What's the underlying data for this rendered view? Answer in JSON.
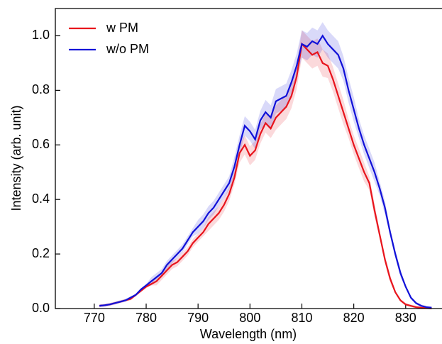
{
  "chart_data": {
    "type": "line",
    "xlabel": "Wavelength (nm)",
    "ylabel": "Intensity (arb. unit)",
    "x": [
      771,
      772,
      773,
      774,
      775,
      776,
      777,
      778,
      779,
      780,
      781,
      782,
      783,
      784,
      785,
      786,
      787,
      788,
      789,
      790,
      791,
      792,
      793,
      794,
      795,
      796,
      797,
      798,
      799,
      800,
      801,
      802,
      803,
      804,
      805,
      806,
      807,
      808,
      809,
      810,
      811,
      812,
      813,
      814,
      815,
      816,
      817,
      818,
      819,
      820,
      821,
      822,
      823,
      824,
      825,
      826,
      827,
      828,
      829,
      830,
      831,
      832,
      833,
      834,
      835
    ],
    "series": [
      {
        "name": "w PM",
        "color": "#e8141c",
        "values": [
          0.01,
          0.012,
          0.015,
          0.02,
          0.025,
          0.03,
          0.035,
          0.05,
          0.065,
          0.08,
          0.09,
          0.1,
          0.12,
          0.14,
          0.16,
          0.17,
          0.19,
          0.21,
          0.24,
          0.26,
          0.28,
          0.31,
          0.33,
          0.35,
          0.38,
          0.42,
          0.48,
          0.57,
          0.6,
          0.56,
          0.58,
          0.64,
          0.68,
          0.66,
          0.7,
          0.72,
          0.74,
          0.78,
          0.85,
          0.97,
          0.95,
          0.93,
          0.94,
          0.9,
          0.89,
          0.84,
          0.78,
          0.72,
          0.66,
          0.6,
          0.55,
          0.5,
          0.46,
          0.36,
          0.27,
          0.18,
          0.11,
          0.06,
          0.03,
          0.015,
          0.01,
          0.005,
          0.003,
          0.002,
          0.001
        ],
        "error": [
          0.005,
          0.005,
          0.005,
          0.005,
          0.005,
          0.005,
          0.005,
          0.005,
          0.005,
          0.005,
          0.005,
          0.015,
          0.015,
          0.015,
          0.015,
          0.015,
          0.015,
          0.015,
          0.015,
          0.015,
          0.015,
          0.025,
          0.025,
          0.025,
          0.025,
          0.025,
          0.025,
          0.035,
          0.035,
          0.035,
          0.035,
          0.035,
          0.035,
          0.035,
          0.045,
          0.045,
          0.045,
          0.045,
          0.045,
          0.05,
          0.05,
          0.05,
          0.05,
          0.05,
          0.045,
          0.045,
          0.045,
          0.045,
          0.035,
          0.035,
          0.035,
          0.035,
          0.025,
          0.025,
          0.015,
          0.015,
          0.015,
          0.005,
          0.005,
          0.005,
          0.005,
          0.005,
          0.005,
          0.005,
          0.005
        ]
      },
      {
        "name": "w/o PM",
        "color": "#1010d8",
        "values": [
          0.01,
          0.012,
          0.015,
          0.02,
          0.025,
          0.03,
          0.04,
          0.05,
          0.07,
          0.085,
          0.1,
          0.115,
          0.13,
          0.16,
          0.18,
          0.2,
          0.22,
          0.25,
          0.28,
          0.3,
          0.32,
          0.35,
          0.37,
          0.4,
          0.43,
          0.46,
          0.52,
          0.6,
          0.67,
          0.65,
          0.62,
          0.69,
          0.72,
          0.7,
          0.76,
          0.77,
          0.78,
          0.83,
          0.89,
          0.97,
          0.96,
          0.98,
          0.97,
          1.0,
          0.97,
          0.95,
          0.93,
          0.88,
          0.8,
          0.73,
          0.66,
          0.6,
          0.55,
          0.5,
          0.44,
          0.37,
          0.28,
          0.2,
          0.13,
          0.08,
          0.04,
          0.02,
          0.01,
          0.005,
          0.003
        ],
        "error": [
          0.005,
          0.005,
          0.005,
          0.005,
          0.005,
          0.005,
          0.005,
          0.005,
          0.005,
          0.005,
          0.015,
          0.015,
          0.015,
          0.015,
          0.015,
          0.015,
          0.015,
          0.015,
          0.015,
          0.025,
          0.025,
          0.025,
          0.025,
          0.025,
          0.025,
          0.025,
          0.035,
          0.035,
          0.035,
          0.035,
          0.035,
          0.035,
          0.045,
          0.045,
          0.045,
          0.045,
          0.045,
          0.045,
          0.045,
          0.05,
          0.05,
          0.05,
          0.05,
          0.05,
          0.05,
          0.05,
          0.05,
          0.045,
          0.045,
          0.045,
          0.035,
          0.035,
          0.035,
          0.035,
          0.025,
          0.025,
          0.015,
          0.015,
          0.015,
          0.005,
          0.005,
          0.005,
          0.005,
          0.005,
          0.005
        ]
      }
    ],
    "xlim": [
      762.5,
      837
    ],
    "xticks": [
      770,
      780,
      790,
      800,
      810,
      820,
      830
    ],
    "ylim": [
      0,
      1.1
    ],
    "yticks": [
      {
        "value": 0,
        "label": "0.0"
      },
      0.2,
      0.4,
      0.6,
      0.8,
      {
        "value": 1,
        "label": "1.0"
      }
    ],
    "legend": "upper left"
  }
}
